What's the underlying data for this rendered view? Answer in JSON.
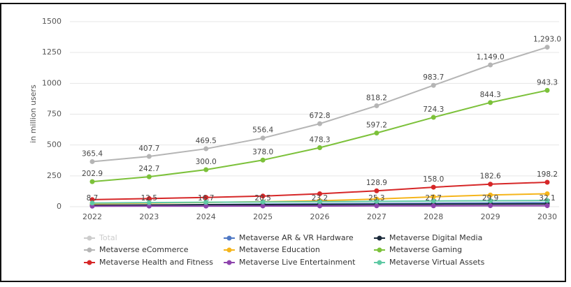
{
  "chart_data": {
    "type": "line",
    "y_axis_label": "in million users",
    "x": [
      "2022",
      "2023",
      "2024",
      "2025",
      "2026",
      "2027",
      "2028",
      "2029",
      "2030"
    ],
    "ylim": [
      0,
      1500
    ],
    "yticks": [
      0,
      250,
      500,
      750,
      1000,
      1250,
      1500
    ],
    "grid": true,
    "series": [
      {
        "name": "Total",
        "color": "#cccccc",
        "visible": false
      },
      {
        "name": "Metaverse AR & VR Hardware",
        "color": "#4f78c4",
        "values": [
          8.7,
          12.5,
          16.7,
          20.5,
          23.2,
          25.3,
          27.7,
          29.9,
          32.1
        ]
      },
      {
        "name": "Metaverse Digital Media",
        "color": "#1b2a3a",
        "values": [
          12,
          14,
          16,
          17,
          18,
          19,
          20,
          21,
          22
        ]
      },
      {
        "name": "Metaverse eCommerce",
        "color": "#b5b5b5",
        "values": [
          365.4,
          407.7,
          469.5,
          556.4,
          672.8,
          818.2,
          983.7,
          1149.0,
          1293.0
        ],
        "value_labels": [
          "365.4",
          "407.7",
          "469.5",
          "556.4",
          "672.8",
          "818.2",
          "983.7",
          "1,149.0",
          "1,293.0"
        ]
      },
      {
        "name": "Metaverse Education",
        "color": "#f5b51b",
        "values": [
          25,
          30,
          35,
          40,
          48,
          62,
          80,
          95,
          105
        ]
      },
      {
        "name": "Metaverse Gaming",
        "color": "#7cc13a",
        "values": [
          202.9,
          242.7,
          300.0,
          378.0,
          478.3,
          597.2,
          724.3,
          844.3,
          943.3
        ],
        "value_labels": [
          "202.9",
          "242.7",
          "300.0",
          "378.0",
          "478.3",
          "597.2",
          "724.3",
          "844.3",
          "943.3"
        ]
      },
      {
        "name": "Metaverse Health and Fitness",
        "color": "#d62728",
        "values": [
          57,
          66,
          75,
          86,
          105,
          128.9,
          158.0,
          182.6,
          198.2
        ],
        "value_labels": [
          null,
          null,
          null,
          null,
          null,
          "128.9",
          "158.0",
          "182.6",
          "198.2"
        ]
      },
      {
        "name": "Metaverse Live Entertainment",
        "color": "#8e44ad",
        "values": [
          4,
          5,
          5,
          6,
          6,
          7,
          7,
          8,
          8
        ]
      },
      {
        "name": "Metaverse Virtual Assets",
        "color": "#5fc9a4",
        "values": [
          30,
          33,
          36,
          38,
          40,
          43,
          46,
          48,
          50
        ]
      }
    ]
  }
}
